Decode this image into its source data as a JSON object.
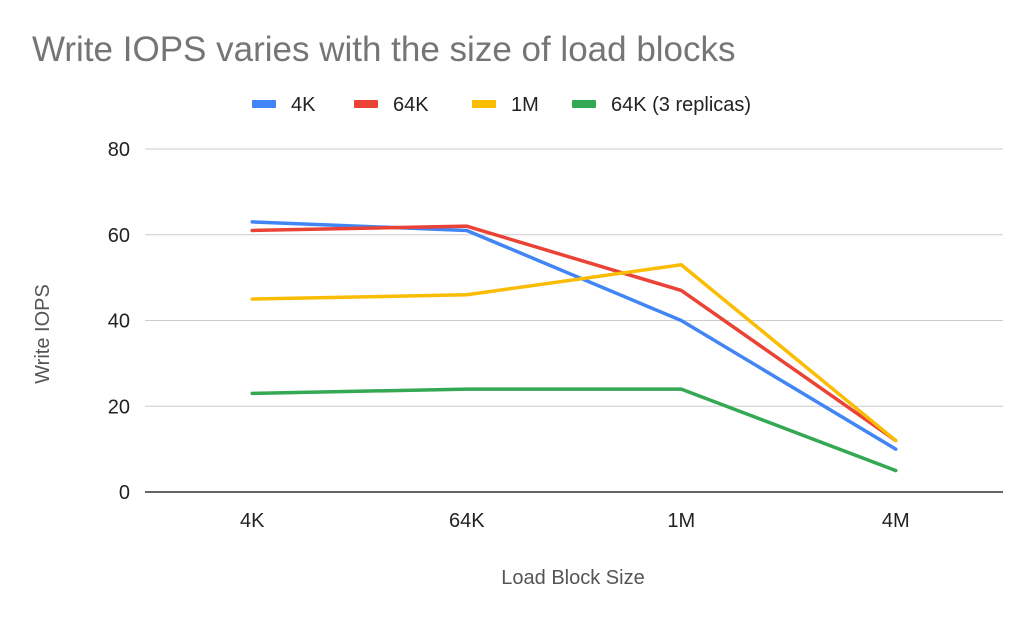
{
  "chart_data": {
    "type": "line",
    "title": "Write IOPS varies with the size of load blocks",
    "xlabel": "Load Block Size",
    "ylabel": "Write IOPS",
    "categories": [
      "4K",
      "64K",
      "1M",
      "4M"
    ],
    "ylim": [
      0,
      80
    ],
    "yticks": [
      0,
      20,
      40,
      60,
      80
    ],
    "grid": true,
    "legend_position": "top",
    "series": [
      {
        "name": "4K",
        "color": "#4285F4",
        "values": [
          63,
          61,
          40,
          10
        ]
      },
      {
        "name": "64K",
        "color": "#EA4335",
        "values": [
          61,
          62,
          47,
          12
        ]
      },
      {
        "name": "1M",
        "color": "#FBBC04",
        "values": [
          45,
          46,
          53,
          12
        ]
      },
      {
        "name": "64K (3 replicas)",
        "color": "#34A853",
        "values": [
          23,
          24,
          24,
          5
        ]
      }
    ]
  }
}
